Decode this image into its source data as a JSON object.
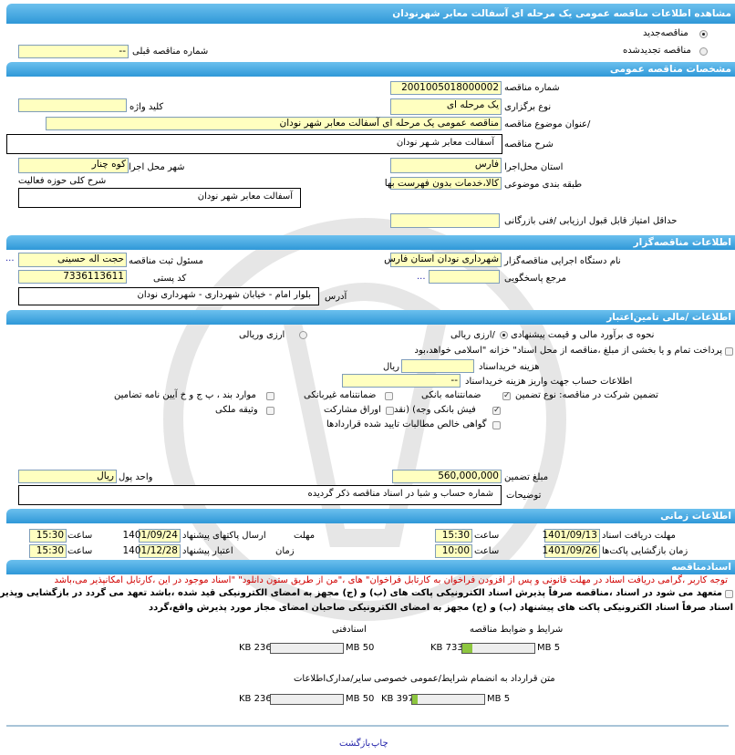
{
  "title": "مشاهده اطلاعات مناقصه  عمومی یک مرحله ای آسفالت معابر شهرنودان",
  "tender_type": {
    "new_label": "مناقصه‌جدید",
    "renewed_label": "مناقصه تجدیدشده",
    "selected": "new",
    "prev_number_label": "شماره  مناقصه قبلی",
    "prev_number_value": "--"
  },
  "general": {
    "header": "مشخصات مناقصه عمومی",
    "number_label": "شماره مناقصه",
    "number_value": "2001005018000002",
    "holding_type_label": "نوع برگزاری",
    "holding_type_value": "یک مرحله ای",
    "keyword_label": "کلید واژه",
    "keyword_value": "",
    "subject_label": "/عنوان  موضوع مناقصه",
    "subject_value": "مناقصه عمومی یک مرحله ای آسفالت معابر شهر نودان",
    "description_label": "شرح مناقصه",
    "description_value": "آسفالت معابر شـهر نودان",
    "province_label": "استان محل‌اجرا",
    "province_value": "فارس",
    "city_label": "شهر محل اجرا",
    "city_value": "کوه چنار",
    "category_label": "طبقه  بندی موضوعی",
    "category_value": "کالا،خدمات بدون فهرست بها",
    "activity_label": "شرح  کلی حوزه فعالیت",
    "activity_value": "آسفالت معابر شهر نودان",
    "min_score_label": "حداقل  امتیاز قابل قبول  ارزیابی /فنی بازرگانی",
    "min_score_value": ""
  },
  "organizer": {
    "header": "اطلاعات مناقصه‌گزار",
    "org_label": "نام دستگاه اجرایی  مناقصه‌گزار",
    "org_value": "شهرداری نودان استان فارس",
    "registrar_label": "مسئول ثبت مناقصه",
    "registrar_value": "حجت اله حسینی",
    "more": "...",
    "reference_label": "مرجع پاسخگویی",
    "reference_value": "",
    "postal_label": "کد  پستی",
    "postal_value": "7336113611",
    "address_label": "آدرس",
    "address_value": "بلوار امام - خیابان  شهرداری  -  شهرداری نودان"
  },
  "finance": {
    "header": "اطلاعات /مالی تامین‌اعتبار",
    "estimate_label": "نحوه ی برآورد مالی و قیمت پیشنهادی",
    "opt_rial": "/ارزی ریالی",
    "opt_fx_rial": "ارزی وریالی",
    "selected": "rial",
    "treasury_note": "پرداخت تمام و یا  بخشی از  مبلغ  ،مناقصه از محل اسناد\" خزانه  \"اسلامی خواهد،بود",
    "doc_fee_label": "هزینه خریداسناد",
    "doc_fee_value": "",
    "doc_fee_unit": "ریال",
    "account_label": "اطلاعات حساب جهت واریز  هزینه خریداسناد",
    "account_value": "--"
  },
  "guarantee": {
    "label": "تضمین شرکت در  مناقصه:    نوع     تضمین",
    "options": [
      {
        "label": "ضمانتنامه  بانکی",
        "checked": true
      },
      {
        "label": "ضمانتنامه  غیربانکی",
        "checked": false
      },
      {
        "label": "موارد  بند ، پ ج و خ آیین نامه تضامین",
        "checked": false
      },
      {
        "label": "فیش  بانکی وجه) (نقد",
        "checked": true
      },
      {
        "label": "اوراق  مشارکت",
        "checked": false
      },
      {
        "label": "وثیقه ملکی",
        "checked": false
      },
      {
        "label": "گواهی  خالص مطالبات تایید شده قراردادها",
        "checked": false
      }
    ],
    "amount_label": "مبلغ تضمین",
    "amount_value": "560,000,000",
    "currency_label": "واحد پول",
    "currency_value": "ریال",
    "notes_label": "توضیحات",
    "notes_value": "شماره حساب و شبا در اسناد مناقصه ذکر گردیده"
  },
  "timing": {
    "header": "اطلاعات زمانی",
    "doc_deadline_label": "مهلت  دریافت اسناد",
    "doc_deadline_date": "1401/09/13",
    "doc_deadline_time": "15:30",
    "time_label": "ساعت",
    "send_label_a": "مهلت",
    "send_label_b": "ارسال  پاکتهای پیشنهاد",
    "send_date": "1401/09/24",
    "send_time": "15:30",
    "opening_label": "زمان  بازگشایی پاکت‌ها",
    "opening_date": "1401/09/26",
    "opening_time": "10:00",
    "validity_label_a": "زمان",
    "validity_label_b": "اعتبار پیشنهاد",
    "validity_date": "1401/12/28",
    "validity_time": "15:30"
  },
  "documents": {
    "header": "اسنادمناقصه",
    "warning": "توجه کاربر ،گرامی دریافت اسناد در مهلت قانونی و پس از افزودن فراخوان به کارتابل فراخوان\" های ،\"من از طریق ستون دانلود\" \"اسناد موجود در این ،کارتابل امکانپذیر می،باشد",
    "commitment_line1": "متعهد می شود در اسناد ،مناقصه صرفاً پذیرش اسناد الکترونیکی پاکت های (ب) و (ج) مجهز به امضای الکترونیکی قید شده ،باشد تعهد می گردد در بازگشایی وپذیرش",
    "commitment_line2": "اسناد صرفاً اسناد الکترونیکی پاکت های پیشنهاد (ب) و (ج) مجهز به امضای الکترونیکی صاحبان امضای مجاز مورد پذیرش واقع،گردد",
    "files": [
      {
        "label": "شرایط و  ضوابط مناقصه",
        "size": "733 KB",
        "max": "5 MB",
        "fraction": 0.14
      },
      {
        "label": "اسنادفنی",
        "size": "236 KB",
        "max": "50 MB",
        "fraction": 0.005
      },
      {
        "label": "متن قرارداد به  انضمام شرایط/عمومی خصوصی",
        "size": "397 KB",
        "max": "5 MB",
        "fraction": 0.08
      },
      {
        "label": "سایر/مدارک‌اطلاعات",
        "size": "236 KB",
        "max": "50 MB",
        "fraction": 0.005
      }
    ]
  },
  "footer": {
    "print": "چاپ",
    "back": "بازگشت"
  },
  "colors": {
    "header_bar": "#3aa3e0",
    "input_bg": "#ffffc0",
    "progress_fill": "#8dc63f",
    "warning": "#d00000",
    "link": "#2222aa"
  }
}
